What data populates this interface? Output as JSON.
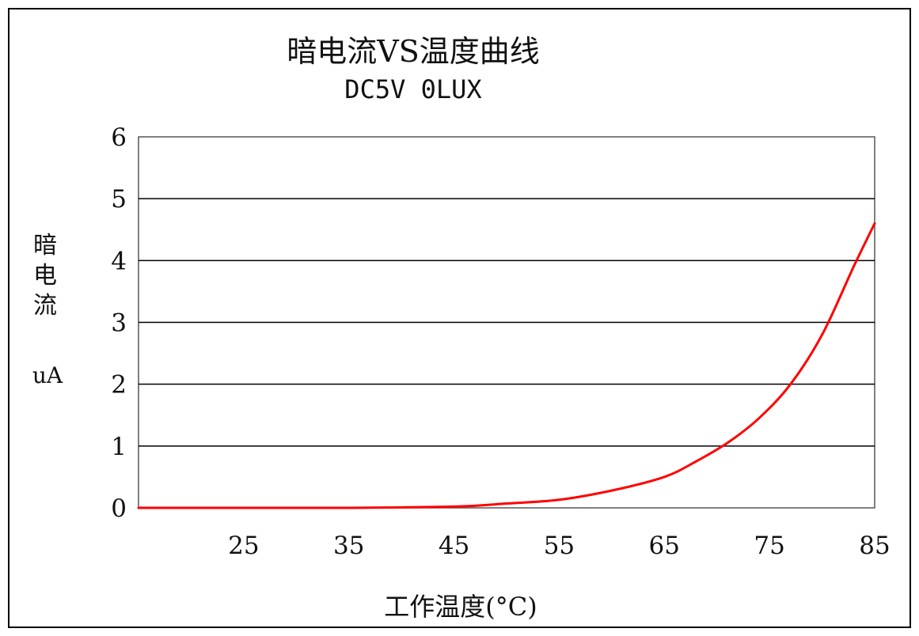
{
  "chart_data": {
    "type": "line",
    "title": "暗电流VS温度曲线",
    "subtitle": "DC5V 0LUX",
    "xlabel": "工作温度(°C)",
    "ylabel_chars": [
      "暗",
      "电",
      "流"
    ],
    "ylabel_unit": "uA",
    "xlim": [
      15,
      85
    ],
    "ylim": [
      0,
      6
    ],
    "x_ticks": [
      25,
      35,
      45,
      55,
      65,
      75,
      85
    ],
    "x_tick_labels": [
      "25",
      "35",
      "45",
      "55",
      "65",
      "75",
      "85"
    ],
    "y_ticks": [
      0,
      1,
      2,
      3,
      4,
      5,
      6
    ],
    "y_tick_labels": [
      "0",
      "1",
      "2",
      "3",
      "4",
      "5",
      "6"
    ],
    "grid": "horizontal",
    "series": [
      {
        "color": "#ff0000",
        "x": [
          15,
          25,
          35,
          45,
          50,
          55,
          60,
          65,
          68,
          71,
          74,
          77,
          80,
          83,
          85
        ],
        "y": [
          0.0,
          0.0,
          0.0,
          0.02,
          0.07,
          0.13,
          0.28,
          0.5,
          0.75,
          1.05,
          1.45,
          2.0,
          2.8,
          3.9,
          4.6
        ]
      }
    ]
  }
}
